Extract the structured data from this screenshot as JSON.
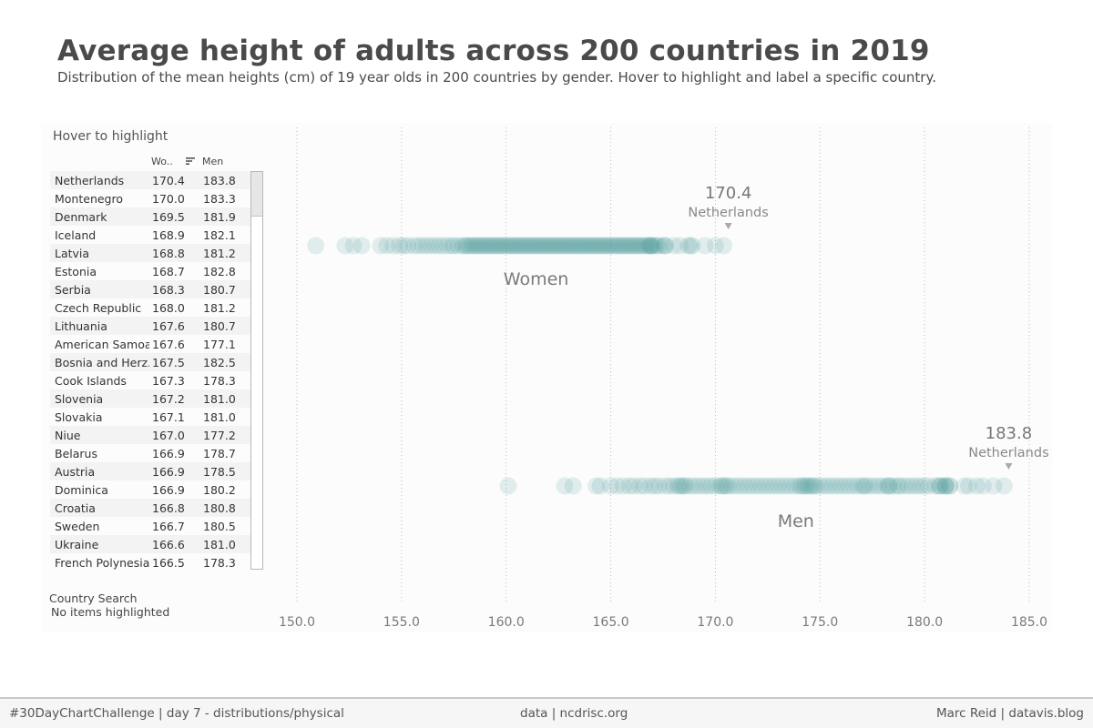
{
  "header": {
    "title": "Average height of adults across 200 countries in 2019",
    "subtitle": "Distribution of the mean heights (cm) of 19 year olds in 200 countries by gender. Hover to highlight and label a specific country."
  },
  "table": {
    "heading": "Hover to highlight",
    "col_women": "Wo..",
    "col_men": "Men",
    "sort_icon": "sort-descending-icon",
    "rows": [
      {
        "country": "Netherlands",
        "women": "170.4",
        "men": "183.8"
      },
      {
        "country": "Montenegro",
        "women": "170.0",
        "men": "183.3"
      },
      {
        "country": "Denmark",
        "women": "169.5",
        "men": "181.9"
      },
      {
        "country": "Iceland",
        "women": "168.9",
        "men": "182.1"
      },
      {
        "country": "Latvia",
        "women": "168.8",
        "men": "181.2"
      },
      {
        "country": "Estonia",
        "women": "168.7",
        "men": "182.8"
      },
      {
        "country": "Serbia",
        "women": "168.3",
        "men": "180.7"
      },
      {
        "country": "Czech Republic",
        "women": "168.0",
        "men": "181.2"
      },
      {
        "country": "Lithuania",
        "women": "167.6",
        "men": "180.7"
      },
      {
        "country": "American Samoa",
        "women": "167.6",
        "men": "177.1"
      },
      {
        "country": "Bosnia and Herz..",
        "women": "167.5",
        "men": "182.5"
      },
      {
        "country": "Cook Islands",
        "women": "167.3",
        "men": "178.3"
      },
      {
        "country": "Slovenia",
        "women": "167.2",
        "men": "181.0"
      },
      {
        "country": "Slovakia",
        "women": "167.1",
        "men": "181.0"
      },
      {
        "country": "Niue",
        "women": "167.0",
        "men": "177.2"
      },
      {
        "country": "Belarus",
        "women": "166.9",
        "men": "178.7"
      },
      {
        "country": "Austria",
        "women": "166.9",
        "men": "178.5"
      },
      {
        "country": "Dominica",
        "women": "166.9",
        "men": "180.2"
      },
      {
        "country": "Croatia",
        "women": "166.8",
        "men": "180.8"
      },
      {
        "country": "Sweden",
        "women": "166.7",
        "men": "180.5"
      },
      {
        "country": "Ukraine",
        "women": "166.6",
        "men": "181.0"
      },
      {
        "country": "French Polynesia",
        "women": "166.5",
        "men": "178.3"
      }
    ]
  },
  "search": {
    "label": "Country Search",
    "status": "No items highlighted"
  },
  "footer": {
    "left": "#30DayChartChallenge | day 7 - distributions/physical",
    "middle": "data | ncdrisc.org",
    "right": "Marc Reid | datavis.blog"
  },
  "colors": {
    "dot": "#4a9a9a",
    "grid": "#bdbdbd",
    "text": "#555555"
  },
  "chart_data": {
    "type": "scatter",
    "x_ticks": [
      150,
      155,
      160,
      165,
      170,
      175,
      180,
      185
    ],
    "x_tick_labels": [
      "150.0",
      "155.0",
      "160.0",
      "165.0",
      "170.0",
      "175.0",
      "180.0",
      "185.0"
    ],
    "xlim": [
      150,
      185
    ],
    "grid": "vertical dotted",
    "series": [
      {
        "name": "Women",
        "highlight": {
          "value": "170.4",
          "country": "Netherlands"
        },
        "values": [
          150.9,
          152.3,
          152.7,
          153.1,
          154.0,
          154.3,
          154.6,
          154.9,
          155.1,
          155.3,
          155.6,
          155.8,
          156.0,
          156.2,
          156.4,
          156.6,
          156.8,
          157.0,
          157.2,
          157.4,
          157.5,
          157.7,
          157.9,
          158.0,
          158.1,
          158.2,
          158.3,
          158.4,
          158.5,
          158.6,
          158.7,
          158.8,
          158.9,
          159.0,
          159.1,
          159.2,
          159.3,
          159.4,
          159.5,
          159.6,
          159.7,
          159.8,
          159.9,
          160.0,
          160.1,
          160.2,
          160.3,
          160.4,
          160.5,
          160.6,
          160.7,
          160.8,
          160.9,
          161.0,
          161.1,
          161.2,
          161.3,
          161.4,
          161.5,
          161.6,
          161.7,
          161.8,
          161.9,
          162.0,
          162.1,
          162.2,
          162.3,
          162.4,
          162.5,
          162.6,
          162.7,
          162.8,
          162.9,
          163.0,
          163.1,
          163.2,
          163.3,
          163.4,
          163.5,
          163.6,
          163.7,
          163.8,
          163.9,
          164.0,
          164.1,
          164.2,
          164.3,
          164.4,
          164.5,
          164.6,
          164.7,
          164.8,
          164.9,
          165.0,
          165.1,
          165.2,
          165.3,
          165.4,
          165.5,
          165.6,
          165.7,
          165.8,
          165.9,
          166.0,
          166.1,
          166.2,
          166.3,
          166.4,
          166.5,
          166.6,
          166.7,
          166.8,
          166.9,
          166.9,
          166.9,
          167.0,
          167.1,
          167.2,
          167.3,
          167.5,
          167.6,
          167.6,
          168.0,
          168.3,
          168.7,
          168.8,
          168.9,
          169.5,
          170.0,
          170.4
        ]
      },
      {
        "name": "Men",
        "highlight": {
          "value": "183.8",
          "country": "Netherlands"
        },
        "values": [
          160.1,
          162.8,
          163.2,
          164.3,
          164.5,
          165.0,
          165.3,
          165.6,
          165.9,
          166.1,
          166.4,
          166.6,
          166.9,
          167.1,
          167.3,
          167.6,
          167.8,
          168.0,
          168.2,
          168.3,
          168.4,
          168.5,
          168.6,
          168.8,
          169.0,
          169.2,
          169.4,
          169.6,
          169.8,
          170.0,
          170.2,
          170.3,
          170.4,
          170.5,
          170.6,
          170.8,
          171.0,
          171.2,
          171.4,
          171.6,
          171.8,
          172.0,
          172.2,
          172.4,
          172.6,
          172.8,
          173.0,
          173.2,
          173.4,
          173.6,
          173.8,
          174.0,
          174.1,
          174.2,
          174.3,
          174.4,
          174.5,
          174.6,
          174.7,
          174.8,
          175.0,
          175.2,
          175.4,
          175.6,
          175.8,
          176.0,
          176.2,
          176.4,
          176.6,
          176.8,
          177.0,
          177.1,
          177.2,
          177.4,
          177.6,
          177.8,
          178.0,
          178.2,
          178.3,
          178.3,
          178.5,
          178.7,
          178.8,
          179.0,
          179.2,
          179.4,
          179.6,
          179.8,
          180.0,
          180.2,
          180.5,
          180.7,
          180.7,
          180.8,
          181.0,
          181.0,
          181.0,
          181.2,
          181.2,
          181.9,
          182.1,
          182.5,
          182.8,
          183.3,
          183.8
        ]
      }
    ]
  }
}
